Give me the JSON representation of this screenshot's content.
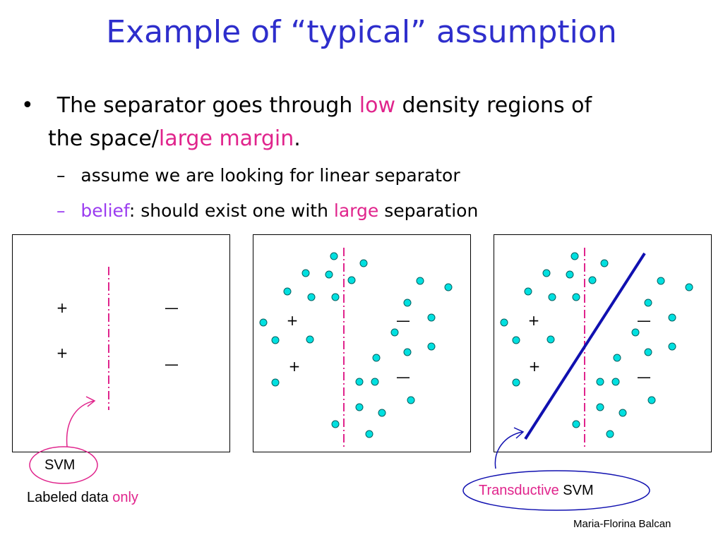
{
  "title": "Example of “typical” assumption",
  "bullet": {
    "marker": "•",
    "line1_a": "The separator goes through ",
    "line1_b": "low",
    "line1_c": " density regions of",
    "line2_a": "the space/",
    "line2_b": "large margin",
    "line2_c": "."
  },
  "sub1": {
    "marker": "–",
    "text": "assume we are looking for linear separator"
  },
  "sub2": {
    "marker": "–",
    "a": "belief",
    "b": ": should exist one with ",
    "c": "large",
    "d": " separation"
  },
  "panels": {
    "plus": "+",
    "minus": "—"
  },
  "labels": {
    "svm": "SVM",
    "labeled_a": "Labeled data ",
    "labeled_b": "only",
    "tsvm_a": "Transductive",
    "tsvm_b": " SVM"
  },
  "author": "Maria-Florina Balcan",
  "colors": {
    "title": "#2e2ecc",
    "highlight": "#e0248c",
    "belief": "#9b3cf0",
    "point_fill": "#00e0e0",
    "separator": "#e0248c",
    "transductive_line": "#1010b0"
  }
}
